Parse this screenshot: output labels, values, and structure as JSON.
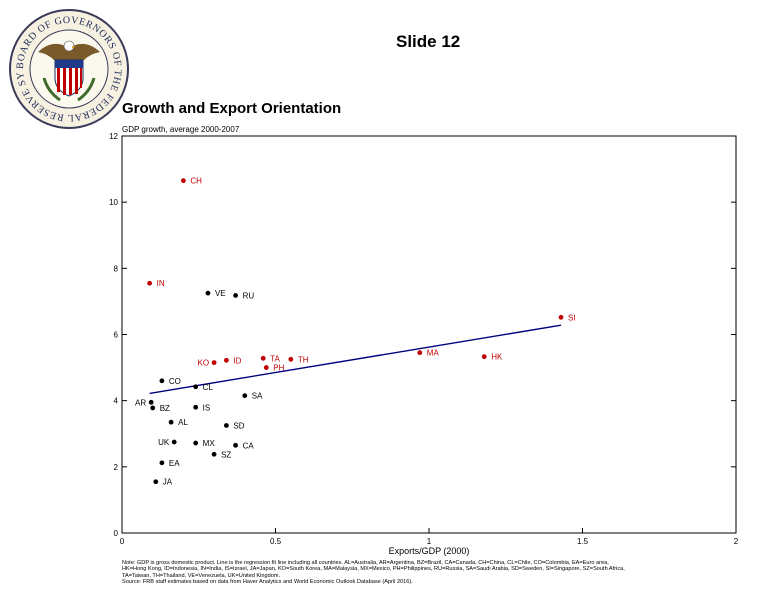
{
  "slide": {
    "label": "Slide 12"
  },
  "seal": {
    "text": "BOARD OF GOVERNORS OF THE FEDERAL RESERVE SYSTEM",
    "icon": "federal-reserve-seal"
  },
  "colors": {
    "highlight": "#c00000",
    "normal": "#000000",
    "fit_line": "#00007f"
  },
  "chart_data": {
    "type": "scatter",
    "title": "Growth and Export Orientation",
    "subtitle": "GDP growth, average 2000-2007",
    "xlabel": "Exports/GDP (2000)",
    "ylabel": "",
    "xlim": [
      0,
      2
    ],
    "ylim": [
      0,
      12
    ],
    "xticks": [
      "0",
      "0.5",
      "1",
      "1.5",
      "2"
    ],
    "yticks": [
      "0",
      "2",
      "4",
      "6",
      "8",
      "10",
      "12"
    ],
    "grid": false,
    "points": [
      {
        "label": "CH",
        "x": 0.2,
        "y": 10.65,
        "highlight": true,
        "label_side": "right"
      },
      {
        "label": "IN",
        "x": 0.09,
        "y": 7.55,
        "highlight": true,
        "label_side": "right"
      },
      {
        "label": "VE",
        "x": 0.28,
        "y": 7.25,
        "highlight": false,
        "label_side": "right"
      },
      {
        "label": "RU",
        "x": 0.37,
        "y": 7.18,
        "highlight": false,
        "label_side": "right"
      },
      {
        "label": "SI",
        "x": 1.43,
        "y": 6.52,
        "highlight": true,
        "label_side": "right"
      },
      {
        "label": "MA",
        "x": 0.97,
        "y": 5.45,
        "highlight": true,
        "label_side": "right"
      },
      {
        "label": "HK",
        "x": 1.18,
        "y": 5.33,
        "highlight": true,
        "label_side": "right"
      },
      {
        "label": "TA",
        "x": 0.46,
        "y": 5.28,
        "highlight": true,
        "label_side": "right"
      },
      {
        "label": "TH",
        "x": 0.55,
        "y": 5.25,
        "highlight": true,
        "label_side": "right"
      },
      {
        "label": "ID",
        "x": 0.34,
        "y": 5.22,
        "highlight": true,
        "label_side": "right"
      },
      {
        "label": "KO",
        "x": 0.3,
        "y": 5.15,
        "highlight": true,
        "label_side": "left"
      },
      {
        "label": "PH",
        "x": 0.47,
        "y": 5.0,
        "highlight": true,
        "label_side": "right"
      },
      {
        "label": "CO",
        "x": 0.13,
        "y": 4.6,
        "highlight": false,
        "label_side": "right"
      },
      {
        "label": "CL",
        "x": 0.24,
        "y": 4.42,
        "highlight": false,
        "label_side": "right"
      },
      {
        "label": "SA",
        "x": 0.4,
        "y": 4.15,
        "highlight": false,
        "label_side": "right"
      },
      {
        "label": "AR",
        "x": 0.095,
        "y": 3.95,
        "highlight": false,
        "label_side": "left"
      },
      {
        "label": "BZ",
        "x": 0.1,
        "y": 3.78,
        "highlight": false,
        "label_side": "right"
      },
      {
        "label": "IS",
        "x": 0.24,
        "y": 3.8,
        "highlight": false,
        "label_side": "right"
      },
      {
        "label": "AL",
        "x": 0.16,
        "y": 3.35,
        "highlight": false,
        "label_side": "right"
      },
      {
        "label": "SD",
        "x": 0.34,
        "y": 3.25,
        "highlight": false,
        "label_side": "right"
      },
      {
        "label": "UK",
        "x": 0.17,
        "y": 2.75,
        "highlight": false,
        "label_side": "left"
      },
      {
        "label": "MX",
        "x": 0.24,
        "y": 2.72,
        "highlight": false,
        "label_side": "right"
      },
      {
        "label": "CA",
        "x": 0.37,
        "y": 2.65,
        "highlight": false,
        "label_side": "right"
      },
      {
        "label": "SZ",
        "x": 0.3,
        "y": 2.38,
        "highlight": false,
        "label_side": "right"
      },
      {
        "label": "EA",
        "x": 0.13,
        "y": 2.12,
        "highlight": false,
        "label_side": "right"
      },
      {
        "label": "JA",
        "x": 0.11,
        "y": 1.55,
        "highlight": false,
        "label_side": "right"
      }
    ],
    "regression_line": {
      "x": [
        0.09,
        1.43
      ],
      "y": [
        4.22,
        6.28
      ]
    }
  },
  "notes": {
    "line1": "Note: GDP is gross domestic product. Line is the regression fit line including all countries. AL=Australia, AR=Argentina, BZ=Brazil, CA=Canada, CH=China, CL=Chile, CO=Colombia, EA=Euro area,",
    "line2": "HK=Hong Kong, ID=Indonesia, IN=India, IS=Israel, JA=Japan, KO=South Korea, MA=Malaysia, MX=Mexico, PH=Philippines, RU=Russia, SA=Saudi Arabia, SD=Sweden, SI=Singapore, SZ=South Africa,",
    "line3": "TA=Taiwan, TH=Thailand, VE=Venezuela, UK=United Kingdom.",
    "source": "Source: FRB staff estimates based on data from Haver Analytics and World Economic Outlook Database (April 2016)."
  }
}
